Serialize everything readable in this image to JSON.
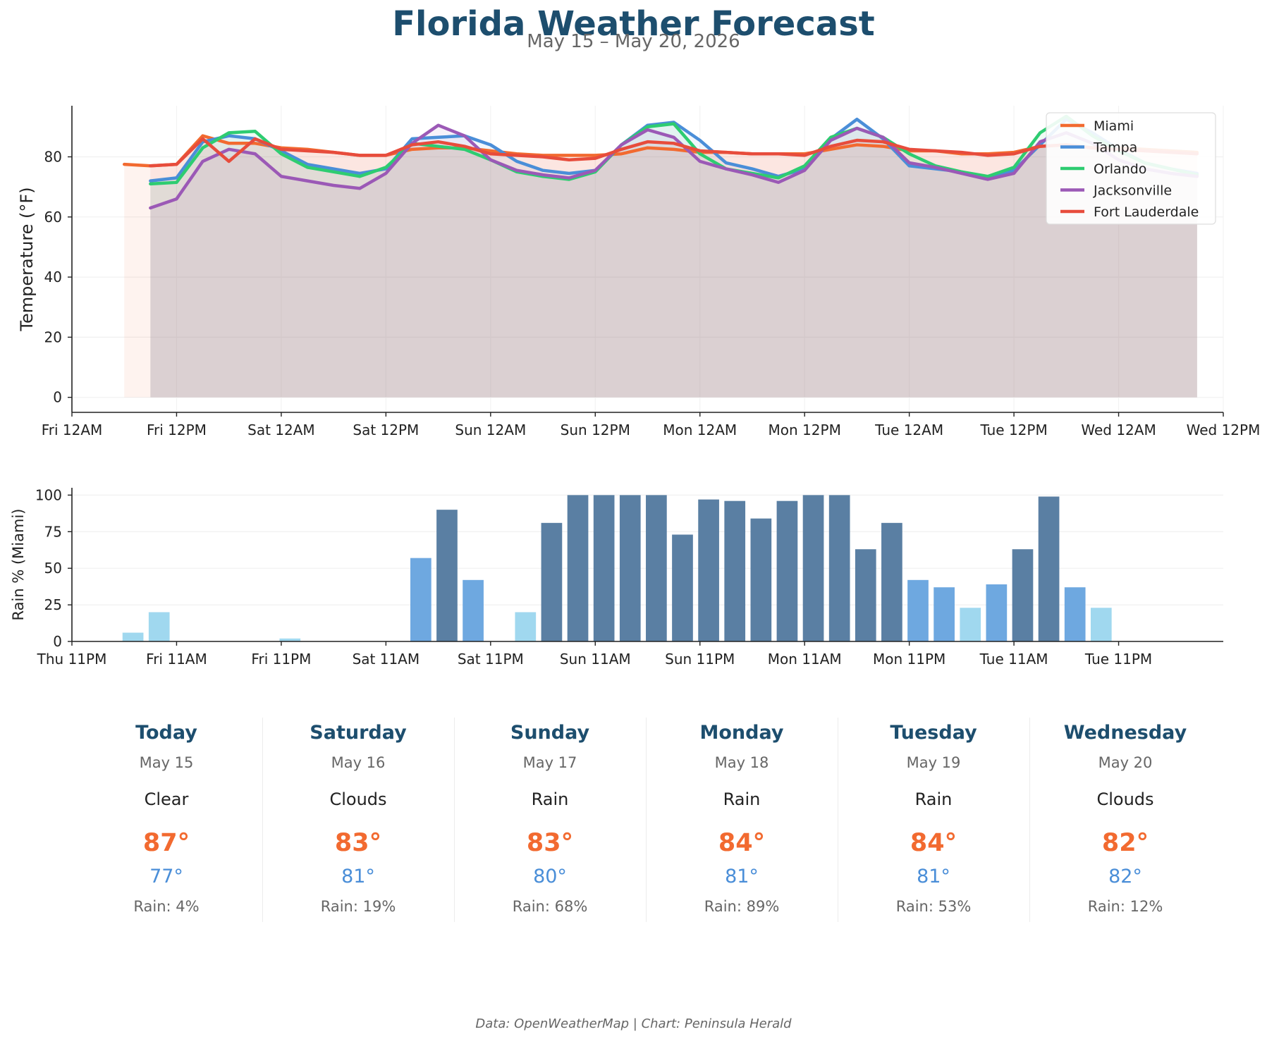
{
  "title": "Florida Weather Forecast",
  "subtitle": "May 15 – May 20, 2026",
  "footer": "Data: OpenWeatherMap | Chart: Peninsula Herald",
  "chart_data": [
    {
      "type": "line",
      "ylabel": "Temperature (°F)",
      "ylim": [
        -5,
        97
      ],
      "yticks": [
        0,
        20,
        40,
        60,
        80
      ],
      "x_unit": "hours since Fri 12AM (May 15, 2026)",
      "xlim": [
        0,
        132
      ],
      "xticks": [
        0,
        12,
        24,
        36,
        48,
        60,
        72,
        84,
        96,
        108,
        120,
        132
      ],
      "xtick_labels": [
        "Fri 12AM",
        "Fri 12PM",
        "Sat 12AM",
        "Sat 12PM",
        "Sun 12AM",
        "Sun 12PM",
        "Mon 12AM",
        "Mon 12PM",
        "Tue 12AM",
        "Tue 12PM",
        "Wed 12AM",
        "Wed 12PM"
      ],
      "legend_position": "top-right",
      "grid": true,
      "filled": true,
      "series": [
        {
          "name": "Miami",
          "color": "#f26a30",
          "x": [
            6,
            9,
            12,
            15,
            18,
            21,
            24,
            27,
            30,
            33,
            36,
            39,
            42,
            45,
            48,
            51,
            54,
            57,
            60,
            63,
            66,
            69,
            72,
            75,
            78,
            81,
            84,
            87,
            90,
            93,
            96,
            99,
            102,
            105,
            108,
            111,
            114,
            117,
            120,
            123,
            126,
            129
          ],
          "values": [
            77.5,
            77,
            77.5,
            87,
            84.5,
            84.5,
            83,
            82.5,
            81.5,
            80.5,
            80.5,
            82.5,
            83,
            83,
            82,
            81,
            80.5,
            80.5,
            80.5,
            81,
            83,
            82.5,
            81.5,
            81.5,
            81,
            81,
            81,
            82.5,
            84,
            83.5,
            82,
            82,
            81,
            81,
            81.5,
            83.5,
            84,
            83,
            83,
            82.5,
            82,
            81.5
          ]
        },
        {
          "name": "Tampa",
          "color": "#4a8ed8",
          "x": [
            9,
            12,
            15,
            18,
            21,
            24,
            27,
            30,
            33,
            36,
            39,
            42,
            45,
            48,
            51,
            54,
            57,
            60,
            63,
            66,
            69,
            72,
            75,
            78,
            81,
            84,
            87,
            90,
            93,
            96,
            99,
            102,
            105,
            108,
            111,
            114,
            117,
            120,
            123,
            126,
            129
          ],
          "values": [
            72,
            73,
            85,
            87,
            86,
            82,
            77.5,
            76,
            74.5,
            76,
            86,
            86.5,
            87,
            84,
            78.5,
            75.5,
            74.5,
            75.5,
            84,
            90.5,
            91.5,
            85.5,
            78,
            76,
            73.5,
            76,
            86,
            92.5,
            86,
            77,
            76,
            75,
            73,
            75.5,
            84,
            92.5,
            88,
            82.5,
            78,
            76,
            74.5
          ]
        },
        {
          "name": "Orlando",
          "color": "#2ecc71",
          "x": [
            9,
            12,
            15,
            18,
            21,
            24,
            27,
            30,
            33,
            36,
            39,
            42,
            45,
            48,
            51,
            54,
            57,
            60,
            63,
            66,
            69,
            72,
            75,
            78,
            81,
            84,
            87,
            90,
            93,
            96,
            99,
            102,
            105,
            108,
            111,
            114,
            117,
            120,
            123,
            126,
            129
          ],
          "values": [
            71,
            71.5,
            83,
            88,
            88.5,
            81,
            76.5,
            75,
            73.5,
            76.5,
            84.5,
            83.5,
            82.5,
            79,
            75,
            73.5,
            72.5,
            75,
            84,
            90,
            91,
            81,
            76,
            74.5,
            73,
            77,
            86.5,
            89.5,
            86.5,
            81,
            77,
            75,
            73.5,
            76.5,
            88,
            93.5,
            87,
            82,
            78,
            76,
            74
          ]
        },
        {
          "name": "Jacksonville",
          "color": "#9b59b6",
          "x": [
            9,
            12,
            15,
            18,
            21,
            24,
            27,
            30,
            33,
            36,
            39,
            42,
            45,
            48,
            51,
            54,
            57,
            60,
            63,
            66,
            69,
            72,
            75,
            78,
            81,
            84,
            87,
            90,
            93,
            96,
            99,
            102,
            105,
            108,
            111,
            114,
            117,
            120,
            123,
            126,
            129
          ],
          "values": [
            63,
            66,
            78.5,
            82.5,
            81,
            73.5,
            72,
            70.5,
            69.5,
            74.5,
            84.5,
            90.5,
            87,
            79,
            75.5,
            74,
            73,
            75.5,
            84,
            89,
            86.5,
            78.5,
            76,
            74,
            71.5,
            75.5,
            85.5,
            89.5,
            86.5,
            78,
            76.5,
            74.5,
            72.5,
            74.5,
            85,
            88,
            84.5,
            79,
            76,
            74.5,
            73.5
          ]
        },
        {
          "name": "Fort Lauderdale",
          "color": "#e74c3c",
          "x": [
            9,
            12,
            15,
            18,
            21,
            24,
            27,
            30,
            33,
            36,
            39,
            42,
            45,
            48,
            51,
            54,
            57,
            60,
            63,
            66,
            69,
            72,
            75,
            78,
            81,
            84,
            87,
            90,
            93,
            96,
            99,
            102,
            105,
            108,
            111,
            114,
            117,
            120,
            123,
            126,
            129
          ],
          "values": [
            77,
            77.5,
            86,
            78.5,
            86,
            82.5,
            82,
            81.5,
            80.5,
            80.5,
            84,
            85,
            83.5,
            81,
            80.5,
            80,
            79,
            79.5,
            82.5,
            85,
            84.5,
            82,
            81.5,
            81,
            81,
            80.5,
            83.5,
            85.5,
            85,
            82.5,
            82,
            81.5,
            80.5,
            81,
            83.5,
            84,
            83,
            82.5,
            82,
            81.5,
            81
          ]
        }
      ]
    },
    {
      "type": "bar",
      "ylabel": "Rain % (Miami)",
      "ylim": [
        0,
        105
      ],
      "yticks": [
        0,
        25,
        50,
        75,
        100
      ],
      "x_unit": "hours since Thu 11PM (May 14, 2026)",
      "xlim": [
        0,
        132
      ],
      "xticks": [
        0,
        12,
        24,
        36,
        48,
        60,
        72,
        84,
        96,
        108,
        120
      ],
      "xtick_labels": [
        "Thu 11PM",
        "Fri 11AM",
        "Fri 11PM",
        "Sat 11AM",
        "Sat 11PM",
        "Sun 11AM",
        "Sun 11PM",
        "Mon 11AM",
        "Mon 11PM",
        "Tue 11AM",
        "Tue 11PM"
      ],
      "grid": true,
      "x": [
        7,
        10,
        13,
        16,
        19,
        22,
        25,
        28,
        31,
        34,
        37,
        40,
        43,
        46,
        49,
        52,
        55,
        58,
        61,
        64,
        67,
        70,
        73,
        76,
        79,
        82,
        85,
        88,
        91,
        94,
        97,
        100,
        103,
        106,
        109,
        112,
        115,
        118,
        121,
        124,
        127
      ],
      "values": [
        6,
        20,
        0,
        0,
        0,
        0,
        2,
        0,
        0,
        0,
        0,
        57,
        90,
        42,
        0,
        20,
        81,
        100,
        100,
        100,
        100,
        73,
        97,
        96,
        84,
        96,
        100,
        100,
        63,
        81,
        42,
        37,
        23,
        39,
        63,
        99,
        37,
        23,
        0,
        0,
        0
      ],
      "color_rule": [
        {
          "below": 30,
          "color": "#a0d8ef"
        },
        {
          "below": 60,
          "color": "#6ea8e0"
        },
        {
          "below": 101,
          "color": "#5a7fa3"
        }
      ]
    }
  ],
  "days": [
    {
      "name": "Today",
      "date": "May 15",
      "condition": "Clear",
      "high": "87°",
      "low": "77°",
      "rain": "Rain: 4%"
    },
    {
      "name": "Saturday",
      "date": "May 16",
      "condition": "Clouds",
      "high": "83°",
      "low": "81°",
      "rain": "Rain: 19%"
    },
    {
      "name": "Sunday",
      "date": "May 17",
      "condition": "Rain",
      "high": "83°",
      "low": "80°",
      "rain": "Rain: 68%"
    },
    {
      "name": "Monday",
      "date": "May 18",
      "condition": "Rain",
      "high": "84°",
      "low": "81°",
      "rain": "Rain: 89%"
    },
    {
      "name": "Tuesday",
      "date": "May 19",
      "condition": "Rain",
      "high": "84°",
      "low": "81°",
      "rain": "Rain: 53%"
    },
    {
      "name": "Wednesday",
      "date": "May 20",
      "condition": "Clouds",
      "high": "82°",
      "low": "82°",
      "rain": "Rain: 12%"
    }
  ]
}
